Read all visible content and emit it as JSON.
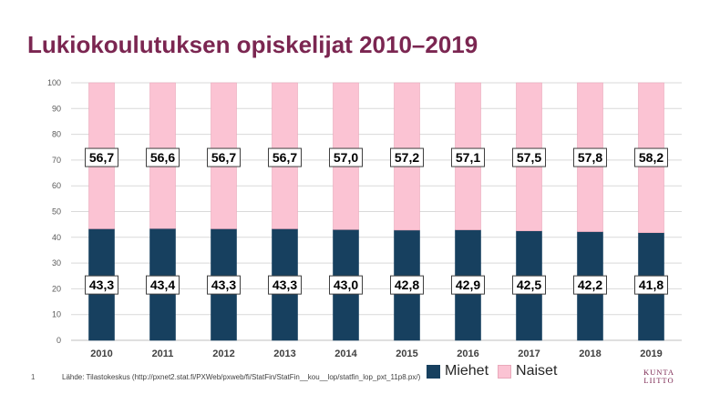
{
  "title": "Lukiokoulutuksen opiskelijat 2010–2019",
  "page_number": "1",
  "source": "Lähde: Tilastokeskus (http://pxnet2.stat.fi/PXWeb/pxweb/fi/StatFin/StatFin__kou__lop/statfin_lop_pxt_11p8.px/)",
  "logo": {
    "line1": "KUNTA",
    "line2": "LIITTO"
  },
  "chart_data": {
    "type": "bar",
    "stacked": true,
    "categories": [
      "2010",
      "2011",
      "2012",
      "2013",
      "2014",
      "2015",
      "2016",
      "2017",
      "2018",
      "2019"
    ],
    "series": [
      {
        "name": "Miehet",
        "color": "#17405f",
        "values": [
          43.3,
          43.4,
          43.3,
          43.3,
          43.0,
          42.8,
          42.9,
          42.5,
          42.2,
          41.8
        ],
        "labels": [
          "43,3",
          "43,4",
          "43,3",
          "43,3",
          "43,0",
          "42,8",
          "42,9",
          "42,5",
          "42,2",
          "41,8"
        ]
      },
      {
        "name": "Naiset",
        "color": "#fbc3d3",
        "values": [
          56.7,
          56.6,
          56.7,
          56.7,
          57.0,
          57.2,
          57.1,
          57.5,
          57.8,
          58.2
        ],
        "labels": [
          "56,7",
          "56,6",
          "56,7",
          "56,7",
          "57,0",
          "57,2",
          "57,1",
          "57,5",
          "57,8",
          "58,2"
        ]
      }
    ],
    "ylim": [
      0,
      100
    ],
    "yticks": [
      "0",
      "10",
      "20",
      "30",
      "40",
      "50",
      "60",
      "70",
      "80",
      "90",
      "100"
    ],
    "grid": true,
    "legend_position": "bottom-right"
  }
}
